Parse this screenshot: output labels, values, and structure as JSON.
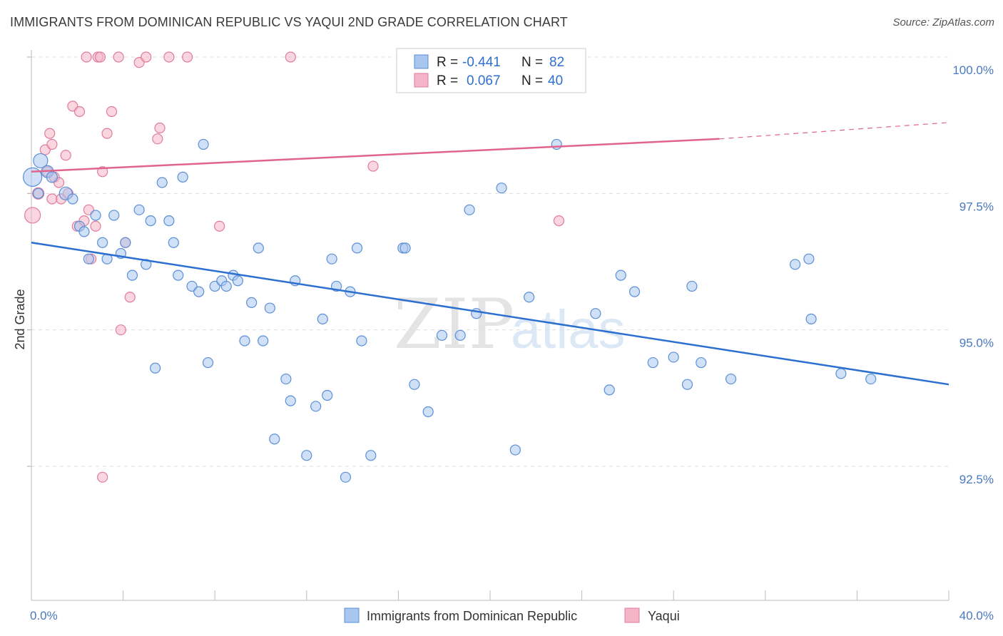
{
  "title": "IMMIGRANTS FROM DOMINICAN REPUBLIC VS YAQUI 2ND GRADE CORRELATION CHART",
  "source": "Source: ZipAtlas.com",
  "watermark": {
    "zip": "ZIP",
    "atlas": "atlas"
  },
  "legend": {
    "rows": [
      {
        "r_label": "R =",
        "r_value": "-0.441",
        "n_label": "N =",
        "n_value": "82"
      },
      {
        "r_label": "R =",
        "r_value": "0.067",
        "n_label": "N =",
        "n_value": "40"
      }
    ]
  },
  "bottom_legend": [
    "Immigrants from Dominican Republic",
    "Yaqui"
  ],
  "colors": {
    "blue_fill": "#a9c6ee",
    "blue_stroke": "#5b8fd6",
    "blue_line": "#2b6fd0",
    "pink_fill": "#f5b5c8",
    "pink_stroke": "#e07c9c",
    "pink_line": "#e0648e",
    "grid": "#dddddd",
    "tick_text": "#4a78c2"
  },
  "chart_data": {
    "type": "scatter",
    "ylabel": "2nd Grade",
    "xlim": [
      0,
      40
    ],
    "ylim": [
      90.0,
      100.5
    ],
    "x_ticks": [
      "0.0%",
      "40.0%"
    ],
    "y_ticks": [
      {
        "value": 100.0,
        "label": "100.0%"
      },
      {
        "value": 97.5,
        "label": "97.5%"
      },
      {
        "value": 95.0,
        "label": "95.0%"
      },
      {
        "value": 92.5,
        "label": "92.5%"
      }
    ],
    "series": [
      {
        "name": "Immigrants from Dominican Republic",
        "trend": {
          "x0": 0,
          "y0": 96.6,
          "x1": 40,
          "y1": 94.0
        },
        "points": [
          [
            0.05,
            97.8,
            26
          ],
          [
            0.4,
            98.1,
            20
          ],
          [
            0.7,
            97.9,
            17
          ],
          [
            0.9,
            97.8,
            15
          ],
          [
            1.5,
            97.5,
            18
          ],
          [
            1.8,
            97.4,
            14
          ],
          [
            2.1,
            96.9,
            14
          ],
          [
            2.3,
            96.8,
            14
          ],
          [
            2.5,
            96.3,
            14
          ],
          [
            2.8,
            97.1,
            14
          ],
          [
            3.1,
            96.6,
            14
          ],
          [
            3.3,
            96.3,
            14
          ],
          [
            3.6,
            97.1,
            14
          ],
          [
            3.9,
            96.4,
            14
          ],
          [
            4.1,
            96.6,
            14
          ],
          [
            4.4,
            96.0,
            14
          ],
          [
            4.7,
            97.2,
            14
          ],
          [
            5.0,
            96.2,
            14
          ],
          [
            5.2,
            97.0,
            14
          ],
          [
            5.4,
            94.3,
            14
          ],
          [
            5.7,
            97.7,
            14
          ],
          [
            6.0,
            97.0,
            14
          ],
          [
            6.2,
            96.6,
            14
          ],
          [
            6.4,
            96.0,
            14
          ],
          [
            6.6,
            97.8,
            14
          ],
          [
            7.0,
            95.8,
            14
          ],
          [
            7.3,
            95.7,
            14
          ],
          [
            7.5,
            98.4,
            14
          ],
          [
            7.7,
            94.4,
            14
          ],
          [
            8.0,
            95.8,
            14
          ],
          [
            8.3,
            95.9,
            14
          ],
          [
            8.5,
            95.8,
            14
          ],
          [
            8.8,
            96.0,
            14
          ],
          [
            9.0,
            95.9,
            14
          ],
          [
            9.3,
            94.8,
            14
          ],
          [
            9.6,
            95.5,
            14
          ],
          [
            9.9,
            96.5,
            14
          ],
          [
            10.1,
            94.8,
            14
          ],
          [
            10.4,
            95.4,
            14
          ],
          [
            10.6,
            93.0,
            14
          ],
          [
            11.1,
            94.1,
            14
          ],
          [
            11.3,
            93.7,
            14
          ],
          [
            11.5,
            95.9,
            14
          ],
          [
            12.0,
            92.7,
            14
          ],
          [
            12.4,
            93.6,
            14
          ],
          [
            12.7,
            95.2,
            14
          ],
          [
            12.9,
            93.8,
            14
          ],
          [
            13.1,
            96.3,
            14
          ],
          [
            13.3,
            95.8,
            14
          ],
          [
            13.7,
            92.3,
            14
          ],
          [
            13.9,
            95.7,
            14
          ],
          [
            14.2,
            96.5,
            14
          ],
          [
            14.4,
            94.8,
            14
          ],
          [
            14.8,
            92.7,
            14
          ],
          [
            16.2,
            96.5,
            14
          ],
          [
            16.3,
            96.5,
            14
          ],
          [
            16.7,
            94.0,
            14
          ],
          [
            17.3,
            93.5,
            14
          ],
          [
            17.9,
            94.9,
            14
          ],
          [
            18.7,
            94.9,
            14
          ],
          [
            19.1,
            97.2,
            14
          ],
          [
            19.4,
            95.3,
            14
          ],
          [
            20.5,
            97.6,
            14
          ],
          [
            21.1,
            92.8,
            14
          ],
          [
            21.7,
            95.6,
            14
          ],
          [
            22.9,
            98.4,
            14
          ],
          [
            24.6,
            95.3,
            14
          ],
          [
            25.2,
            93.9,
            14
          ],
          [
            25.7,
            96.0,
            14
          ],
          [
            26.3,
            95.7,
            14
          ],
          [
            27.1,
            94.4,
            14
          ],
          [
            28.0,
            94.5,
            14
          ],
          [
            28.6,
            94.0,
            14
          ],
          [
            28.8,
            95.8,
            14
          ],
          [
            29.2,
            94.4,
            14
          ],
          [
            30.5,
            94.1,
            14
          ],
          [
            33.3,
            96.2,
            14
          ],
          [
            33.9,
            96.3,
            14
          ],
          [
            34.0,
            95.2,
            14
          ],
          [
            35.3,
            94.2,
            14
          ],
          [
            36.6,
            94.1,
            14
          ],
          [
            0.3,
            97.5,
            14
          ]
        ]
      },
      {
        "name": "Yaqui",
        "trend": {
          "x0": 0,
          "y0": 97.9,
          "x1": 30,
          "y1": 98.5,
          "dash_x1": 40,
          "dash_y1": 98.8
        },
        "points": [
          [
            0.05,
            97.1,
            22
          ],
          [
            0.3,
            97.5,
            16
          ],
          [
            0.6,
            98.3,
            14
          ],
          [
            0.7,
            97.9,
            14
          ],
          [
            0.8,
            98.6,
            14
          ],
          [
            0.9,
            97.4,
            14
          ],
          [
            1.0,
            97.8,
            14
          ],
          [
            1.3,
            97.4,
            14
          ],
          [
            1.5,
            98.2,
            14
          ],
          [
            1.6,
            97.5,
            14
          ],
          [
            1.8,
            99.1,
            14
          ],
          [
            2.0,
            96.9,
            14
          ],
          [
            2.1,
            99.0,
            14
          ],
          [
            2.3,
            97.0,
            14
          ],
          [
            2.5,
            97.2,
            14
          ],
          [
            2.6,
            96.3,
            14
          ],
          [
            2.8,
            96.9,
            14
          ],
          [
            2.9,
            100.0,
            14
          ],
          [
            3.0,
            100.0,
            14
          ],
          [
            3.1,
            97.9,
            14
          ],
          [
            3.3,
            98.6,
            14
          ],
          [
            3.5,
            99.0,
            14
          ],
          [
            3.8,
            100.0,
            14
          ],
          [
            3.9,
            95.0,
            14
          ],
          [
            4.1,
            96.6,
            14
          ],
          [
            4.3,
            95.6,
            14
          ],
          [
            4.7,
            99.9,
            14
          ],
          [
            5.0,
            100.0,
            14
          ],
          [
            5.5,
            98.5,
            14
          ],
          [
            5.6,
            98.7,
            14
          ],
          [
            6.0,
            100.0,
            14
          ],
          [
            6.8,
            100.0,
            14
          ],
          [
            8.2,
            96.9,
            14
          ],
          [
            11.3,
            100.0,
            14
          ],
          [
            14.9,
            98.0,
            14
          ],
          [
            23.0,
            97.0,
            14
          ],
          [
            3.1,
            92.3,
            14
          ],
          [
            0.9,
            98.4,
            14
          ],
          [
            1.2,
            97.7,
            14
          ],
          [
            2.4,
            100.0,
            14
          ]
        ]
      }
    ]
  }
}
